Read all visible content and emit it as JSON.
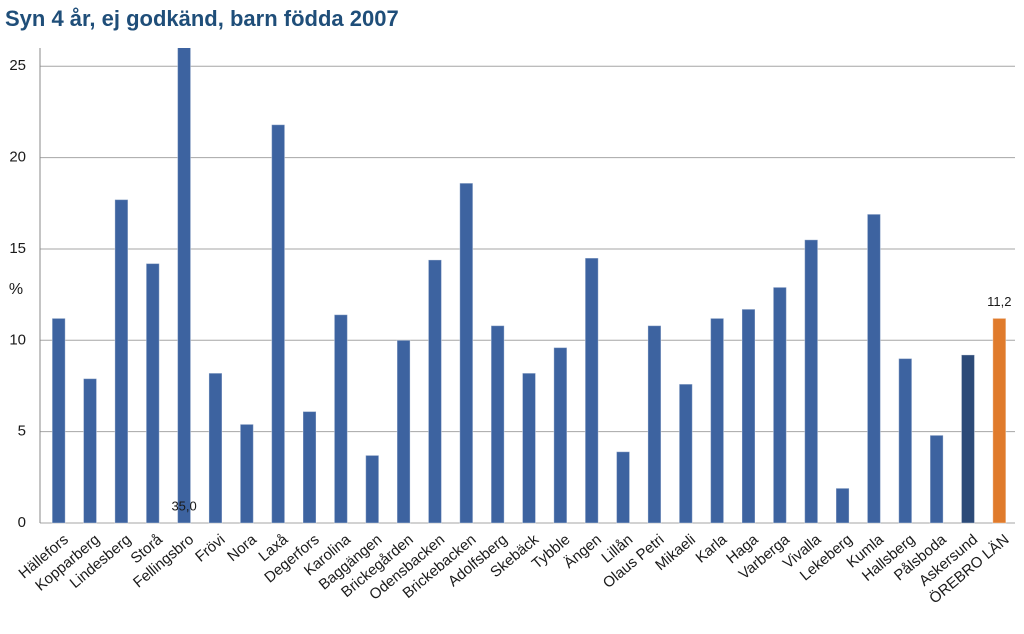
{
  "chart_data": {
    "type": "bar",
    "title": "Syn 4 år, ej godkänd, barn födda 2007",
    "y_label": "%",
    "categories": [
      "Hällefors",
      "Kopparberg",
      "Lindesberg",
      "Storå",
      "Fellingsbro",
      "Frövi",
      "Nora",
      "Laxå",
      "Degerfors",
      "Karolina",
      "Baggängen",
      "Brickegården",
      "Odensbacken",
      "Brickebacken",
      "Adolfsberg",
      "Skebäck",
      "Tybble",
      "Ängen",
      "Lillån",
      "Olaus Petri",
      "Mikaeli",
      "Karla",
      "Haga",
      "Varberga",
      "Vivalla",
      "Lekeberg",
      "Kumla",
      "Hallsberg",
      "Pålsboda",
      "Askersund",
      "ÖREBRO LÄN"
    ],
    "values": [
      11.2,
      7.9,
      17.7,
      14.2,
      35.0,
      8.2,
      5.4,
      21.8,
      6.1,
      11.4,
      3.7,
      10.0,
      14.4,
      18.6,
      10.8,
      8.2,
      9.6,
      14.5,
      3.9,
      10.8,
      7.6,
      11.2,
      11.7,
      12.9,
      15.5,
      1.9,
      16.9,
      9.0,
      4.8,
      9.2,
      11.2
    ],
    "value_labels": [
      null,
      null,
      null,
      null,
      "35,0",
      null,
      null,
      null,
      null,
      null,
      null,
      null,
      null,
      null,
      null,
      null,
      null,
      null,
      null,
      null,
      null,
      null,
      null,
      null,
      null,
      null,
      null,
      null,
      null,
      null,
      "11,2"
    ],
    "colors": [
      "#3d63a0",
      "#3d63a0",
      "#3d63a0",
      "#3d63a0",
      "#3d63a0",
      "#3d63a0",
      "#3d63a0",
      "#3d63a0",
      "#3d63a0",
      "#3d63a0",
      "#3d63a0",
      "#3d63a0",
      "#3d63a0",
      "#3d63a0",
      "#3d63a0",
      "#3d63a0",
      "#3d63a0",
      "#3d63a0",
      "#3d63a0",
      "#3d63a0",
      "#3d63a0",
      "#3d63a0",
      "#3d63a0",
      "#3d63a0",
      "#3d63a0",
      "#3d63a0",
      "#3d63a0",
      "#3d63a0",
      "#3d63a0",
      "#2c4a78",
      "#e07b2c"
    ],
    "ylim": [
      0,
      26
    ],
    "yticks": [
      0,
      5,
      10,
      15,
      20,
      25
    ],
    "grid": true
  }
}
